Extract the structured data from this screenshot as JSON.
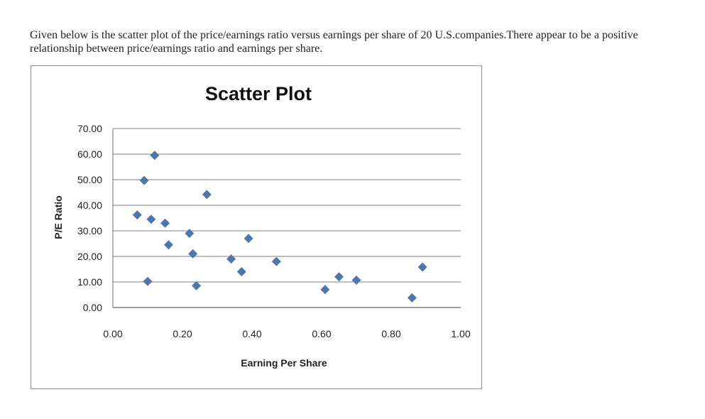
{
  "intro": {
    "text": "Given below is the scatter plot of the price/earnings ratio versus earnings per share of 20 U.S.companies.There appear to be a positive relationship between price/earnings ratio and earnings per share."
  },
  "colors": {
    "marker": "#4f76a8",
    "gridline": "#7f7f7f",
    "frame": "#8c8c8c"
  },
  "chart_data": {
    "type": "scatter",
    "title": "Scatter Plot",
    "xlabel": "Earning Per Share",
    "ylabel": "P/E Ratio",
    "xlim": [
      0,
      1
    ],
    "ylim": [
      0,
      70
    ],
    "x_ticks": [
      "0.00",
      "0.20",
      "0.40",
      "0.60",
      "0.80",
      "1.00"
    ],
    "y_ticks": [
      "0.00",
      "10.00",
      "20.00",
      "30.00",
      "40.00",
      "50.00",
      "60.00",
      "70.00"
    ],
    "grid": "horizontal",
    "legend": "none",
    "series": [
      {
        "points": [
          {
            "x": 0.07,
            "y": 36.2
          },
          {
            "x": 0.09,
            "y": 49.7
          },
          {
            "x": 0.1,
            "y": 10.2
          },
          {
            "x": 0.11,
            "y": 34.5
          },
          {
            "x": 0.12,
            "y": 59.5
          },
          {
            "x": 0.15,
            "y": 33.0
          },
          {
            "x": 0.16,
            "y": 24.5
          },
          {
            "x": 0.22,
            "y": 29.0
          },
          {
            "x": 0.23,
            "y": 21.0
          },
          {
            "x": 0.24,
            "y": 8.5
          },
          {
            "x": 0.27,
            "y": 44.2
          },
          {
            "x": 0.34,
            "y": 19.0
          },
          {
            "x": 0.37,
            "y": 14.0
          },
          {
            "x": 0.39,
            "y": 27.0
          },
          {
            "x": 0.47,
            "y": 18.0
          },
          {
            "x": 0.61,
            "y": 7.0
          },
          {
            "x": 0.65,
            "y": 12.0
          },
          {
            "x": 0.7,
            "y": 10.7
          },
          {
            "x": 0.86,
            "y": 3.8
          },
          {
            "x": 0.89,
            "y": 15.8
          }
        ]
      }
    ]
  }
}
